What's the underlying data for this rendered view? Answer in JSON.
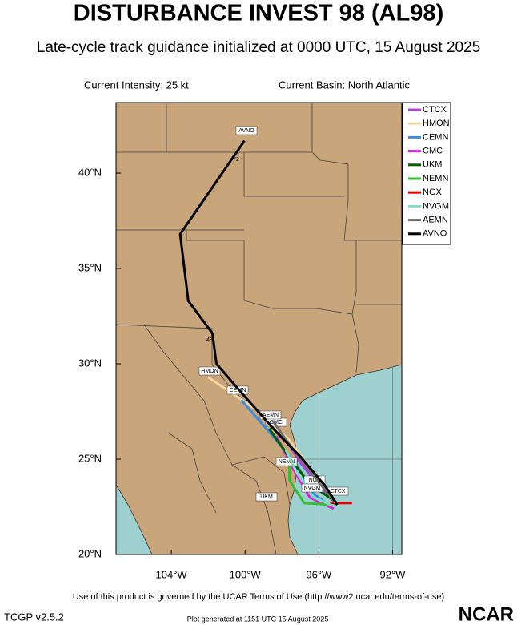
{
  "chart_data": {
    "type": "track-map",
    "title": "DISTURBANCE INVEST 98 (AL98)",
    "subtitle": "Late-cycle track guidance initialized at 0000 UTC, 15 August 2025",
    "intensity": "Current Intensity: 25 kt",
    "basin": "Current Basin: North Atlantic",
    "xlim": [
      -107,
      -91.5
    ],
    "ylim": [
      20,
      43.7
    ],
    "xticks": [
      {
        "value": -104,
        "label": "104°W"
      },
      {
        "value": -100,
        "label": "100°W"
      },
      {
        "value": -96,
        "label": "96°W"
      },
      {
        "value": -92,
        "label": "92°W"
      }
    ],
    "yticks": [
      {
        "value": 20,
        "label": "20°N"
      },
      {
        "value": 25,
        "label": "25°N"
      },
      {
        "value": 30,
        "label": "30°N"
      },
      {
        "value": 35,
        "label": "35°N"
      },
      {
        "value": 40,
        "label": "40°N"
      }
    ],
    "grid": true,
    "legend": "upper right",
    "hour_labels": [
      "72",
      "48"
    ],
    "series": [
      {
        "name": "CTCX",
        "color": "#b040e0",
        "x": [
          -95.0,
          -95.9,
          -97.0,
          -97.9
        ],
        "y": [
          22.6,
          23.5,
          24.8,
          26.2
        ]
      },
      {
        "name": "HMON",
        "color": "#f5d5a0",
        "x": [
          -95.0,
          -96.3,
          -97.6,
          -99.4,
          -102.0
        ],
        "y": [
          22.6,
          24.3,
          26.0,
          27.6,
          29.3
        ]
      },
      {
        "name": "CEMN",
        "color": "#3a8de0",
        "x": [
          -95.2,
          -96.3,
          -97.2,
          -98.5,
          -100.2
        ],
        "y": [
          22.4,
          23.2,
          24.7,
          26.2,
          28.1
        ]
      },
      {
        "name": "CMC",
        "color": "#e020e0",
        "x": [
          -95.2,
          -96.5,
          -97.4,
          -98.3
        ],
        "y": [
          22.4,
          23.0,
          24.5,
          26.2
        ]
      },
      {
        "name": "UKM",
        "color": "#006000",
        "x": [
          -95.0,
          -96.5,
          -97.6,
          -98.7
        ],
        "y": [
          22.7,
          23.7,
          25.1,
          26.6
        ]
      },
      {
        "name": "NEMN",
        "color": "#30c030",
        "x": [
          -95.2,
          -96.8,
          -97.6,
          -97.6
        ],
        "y": [
          22.6,
          22.7,
          23.9,
          25.1
        ]
      },
      {
        "name": "NGX",
        "color": "#e00000",
        "x": [
          -95.4,
          -94.2
        ],
        "y": [
          22.7,
          22.7
        ]
      },
      {
        "name": "NVGM",
        "color": "#80e0c0",
        "x": [
          -95.1,
          -96.3,
          -97.2,
          -97.8
        ],
        "y": [
          22.5,
          23.0,
          24.3,
          25.5
        ]
      },
      {
        "name": "AEMN",
        "color": "#707070",
        "x": [
          -95.0,
          -96.1,
          -97.4,
          -98.5
        ],
        "y": [
          22.6,
          23.9,
          25.5,
          27.0
        ]
      },
      {
        "name": "AVNO",
        "color": "#000000",
        "x": [
          -95.0,
          -95.66,
          -96.97,
          -98.28,
          -100.03,
          -101.55,
          -101.77,
          -103.08,
          -103.52,
          -100.03
        ],
        "y": [
          22.6,
          23.6,
          25.1,
          26.4,
          28.3,
          30.0,
          31.6,
          33.3,
          36.8,
          41.7
        ]
      }
    ]
  },
  "footer": {
    "terms": "Use of this product is governed by the UCAR Terms of Use (http://www2.ucar.edu/terms-of-use)",
    "version": "TCGP v2.5.2",
    "generated": "Plot generated at 1151 UTC   15 August 2025",
    "logo": "NCAR"
  }
}
